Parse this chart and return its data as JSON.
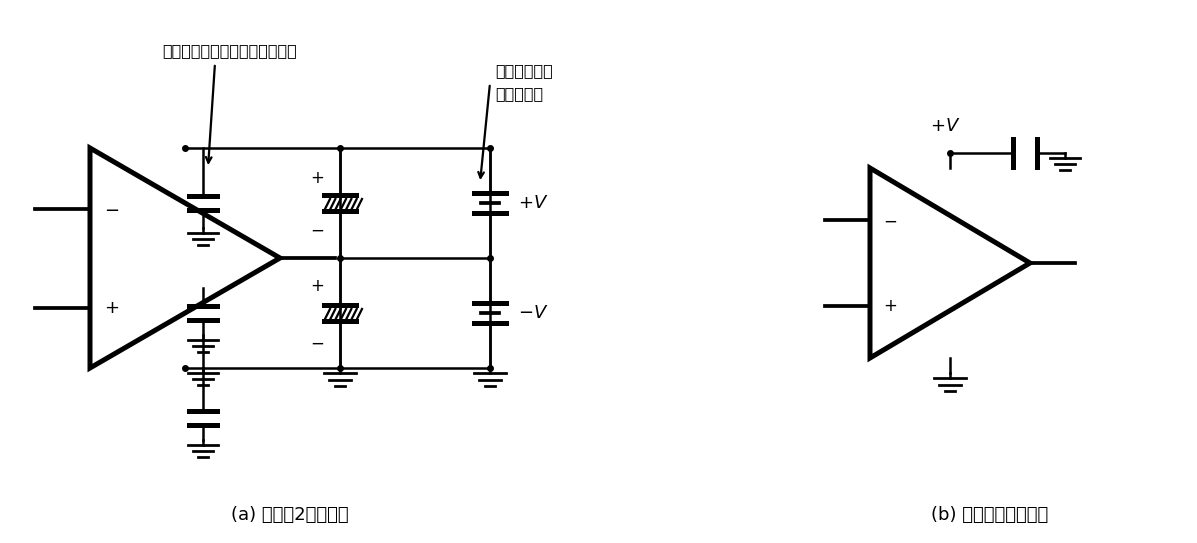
{
  "title_a": "(a) 基本的2电源方式",
  "title_b": "(b) 使用单电源的情况",
  "annotation1": "靠近运算放大器处接陶瓷电容器",
  "annotation2": "靠近电源处接",
  "annotation2b": "电解电容器",
  "lw": 1.8,
  "bg_color": "#ffffff"
}
